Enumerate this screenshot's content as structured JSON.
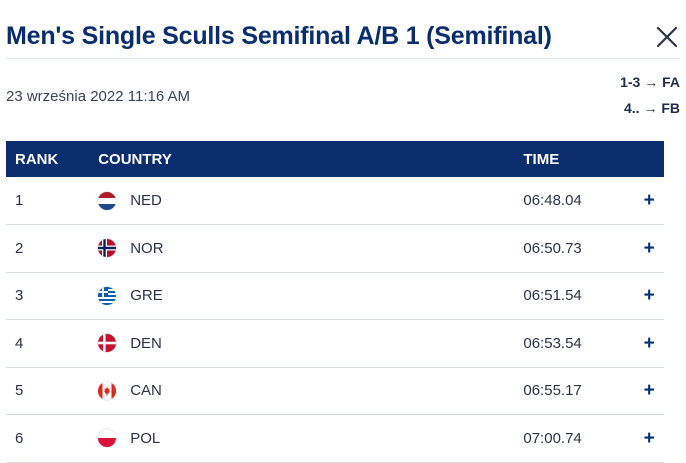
{
  "header": {
    "title": "Men's Single Sculls Semifinal A/B 1 (Semifinal)"
  },
  "meta": {
    "date": "23 września 2022 11:16 AM",
    "qualification": [
      "1-3 → FA",
      "4.. → FB"
    ]
  },
  "table": {
    "columns": [
      "RANK",
      "COUNTRY",
      "TIME"
    ],
    "rows": [
      {
        "rank": "1",
        "country": "NED",
        "flag": "flag-netherlands",
        "time": "06:48.04",
        "action": "+"
      },
      {
        "rank": "2",
        "country": "NOR",
        "flag": "flag-norway",
        "time": "06:50.73",
        "action": "+"
      },
      {
        "rank": "3",
        "country": "GRE",
        "flag": "flag-greece",
        "time": "06:51.54",
        "action": "+"
      },
      {
        "rank": "4",
        "country": "DEN",
        "flag": "flag-denmark",
        "time": "06:53.54",
        "action": "+"
      },
      {
        "rank": "5",
        "country": "CAN",
        "flag": "flag-canada",
        "time": "06:55.17",
        "action": "+"
      },
      {
        "rank": "6",
        "country": "POL",
        "flag": "flag-poland",
        "time": "07:00.74",
        "action": "+"
      }
    ]
  },
  "colors": {
    "brand_navy": "#0a2d6e",
    "row_divider": "#d6dbe4"
  }
}
